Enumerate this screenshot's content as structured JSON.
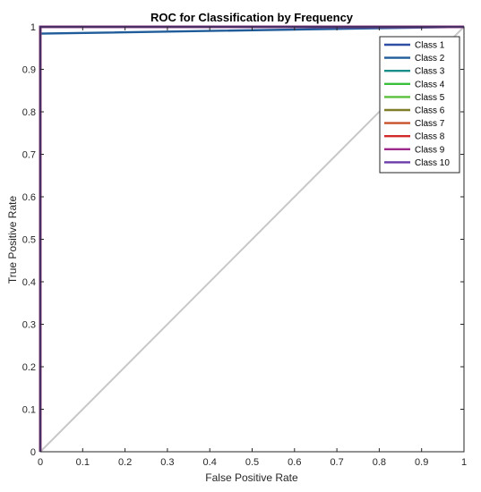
{
  "chart_data": {
    "type": "line",
    "title": "ROC for Classification by Frequency",
    "xlabel": "False Positive Rate",
    "ylabel": "True Positive Rate",
    "xlim": [
      0,
      1
    ],
    "ylim": [
      0,
      1
    ],
    "xticks": [
      0,
      0.1,
      0.2,
      0.3,
      0.4,
      0.5,
      0.6,
      0.7,
      0.8,
      0.9,
      1
    ],
    "yticks": [
      0,
      0.1,
      0.2,
      0.3,
      0.4,
      0.5,
      0.6,
      0.7,
      0.8,
      0.9,
      1
    ],
    "xtick_labels": [
      "0",
      "0.1",
      "0.2",
      "0.3",
      "0.4",
      "0.5",
      "0.6",
      "0.7",
      "0.8",
      "0.9",
      "1"
    ],
    "ytick_labels": [
      "0",
      "0.1",
      "0.2",
      "0.3",
      "0.4",
      "0.5",
      "0.6",
      "0.7",
      "0.8",
      "0.9",
      "1"
    ],
    "grid": false,
    "legend_position": "top-right",
    "reference_line": {
      "x": [
        0,
        1
      ],
      "y": [
        0,
        1
      ],
      "color": "#c8c8c8"
    },
    "series": [
      {
        "name": "Class 1",
        "color": "#2e4fa3",
        "x": [
          0,
          0,
          0,
          1
        ],
        "y": [
          0,
          0.87,
          1,
          1
        ]
      },
      {
        "name": "Class 2",
        "color": "#1f5c99",
        "x": [
          0,
          0,
          1
        ],
        "y": [
          0,
          0.984,
          1
        ]
      },
      {
        "name": "Class 3",
        "color": "#1a8f8a",
        "x": [
          0,
          0,
          1
        ],
        "y": [
          0,
          1,
          1
        ]
      },
      {
        "name": "Class 4",
        "color": "#3cbf3c",
        "x": [
          0,
          0,
          1
        ],
        "y": [
          0,
          1,
          1
        ]
      },
      {
        "name": "Class 5",
        "color": "#5abf3a",
        "x": [
          0,
          0,
          1
        ],
        "y": [
          0,
          1,
          1
        ]
      },
      {
        "name": "Class 6",
        "color": "#7f7f2a",
        "x": [
          0,
          0,
          1
        ],
        "y": [
          0,
          1,
          1
        ]
      },
      {
        "name": "Class 7",
        "color": "#c8502a",
        "x": [
          0,
          0,
          1
        ],
        "y": [
          0,
          1,
          1
        ]
      },
      {
        "name": "Class 8",
        "color": "#d22a2a",
        "x": [
          0,
          0,
          1
        ],
        "y": [
          0,
          1,
          1
        ]
      },
      {
        "name": "Class 9",
        "color": "#9b2a8a",
        "x": [
          0,
          0,
          1
        ],
        "y": [
          0,
          1,
          1
        ]
      },
      {
        "name": "Class 10",
        "color": "#6a3aa8",
        "x": [
          0,
          0,
          1
        ],
        "y": [
          0,
          1,
          1
        ]
      }
    ]
  }
}
